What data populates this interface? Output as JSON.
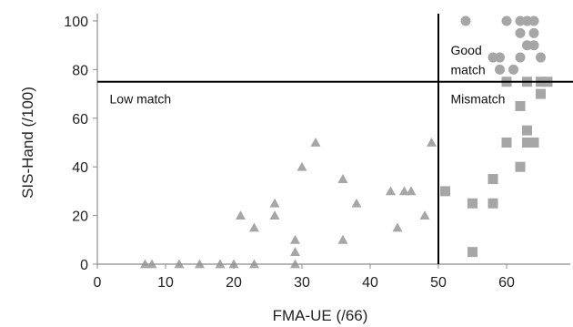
{
  "chart_data": {
    "type": "scatter",
    "xlabel": "FMA-UE (/66)",
    "ylabel": "SIS-Hand (/100)",
    "xlim": [
      0,
      68
    ],
    "ylim": [
      0,
      100
    ],
    "xticks": [
      0,
      10,
      20,
      30,
      40,
      50,
      60
    ],
    "yticks": [
      0,
      20,
      40,
      60,
      80,
      100
    ],
    "grid": false,
    "marker_color": "#a6a6a6",
    "threshold_lines": {
      "x": 50,
      "y": 75
    },
    "annotations": [
      {
        "text": "Low match",
        "x": 1,
        "y": 68
      },
      {
        "text": "Good",
        "x": 51,
        "y": 88
      },
      {
        "text": "match",
        "x": 51,
        "y": 80
      },
      {
        "text": "Mismatch",
        "x": 51,
        "y": 68
      }
    ],
    "series": [
      {
        "marker": "triangle",
        "points": [
          [
            7,
            0
          ],
          [
            8,
            0
          ],
          [
            12,
            0
          ],
          [
            15,
            0
          ],
          [
            18,
            0
          ],
          [
            20,
            0
          ],
          [
            21,
            20
          ],
          [
            23,
            15
          ],
          [
            23,
            0
          ],
          [
            26,
            25
          ],
          [
            26,
            20
          ],
          [
            29,
            10
          ],
          [
            29,
            5
          ],
          [
            29,
            0
          ],
          [
            30,
            40
          ],
          [
            32,
            50
          ],
          [
            36,
            35
          ],
          [
            36,
            10
          ],
          [
            38,
            25
          ],
          [
            43,
            30
          ],
          [
            44,
            15
          ],
          [
            45,
            30
          ],
          [
            46,
            30
          ],
          [
            48,
            20
          ],
          [
            49,
            50
          ]
        ]
      },
      {
        "marker": "square",
        "points": [
          [
            51,
            30
          ],
          [
            55,
            25
          ],
          [
            55,
            5
          ],
          [
            58,
            35
          ],
          [
            58,
            25
          ],
          [
            60,
            75
          ],
          [
            60,
            50
          ],
          [
            62,
            65
          ],
          [
            62,
            40
          ],
          [
            63,
            75
          ],
          [
            63,
            55
          ],
          [
            63,
            50
          ],
          [
            64,
            50
          ],
          [
            65,
            75
          ],
          [
            65,
            70
          ],
          [
            66,
            75
          ]
        ]
      },
      {
        "marker": "circle",
        "points": [
          [
            54,
            100
          ],
          [
            58,
            85
          ],
          [
            59,
            85
          ],
          [
            59,
            80
          ],
          [
            60,
            100
          ],
          [
            61,
            80
          ],
          [
            62,
            100
          ],
          [
            62,
            95
          ],
          [
            62,
            85
          ],
          [
            63,
            100
          ],
          [
            63,
            90
          ],
          [
            64,
            100
          ],
          [
            64,
            95
          ],
          [
            64,
            90
          ],
          [
            65,
            85
          ]
        ]
      }
    ]
  }
}
